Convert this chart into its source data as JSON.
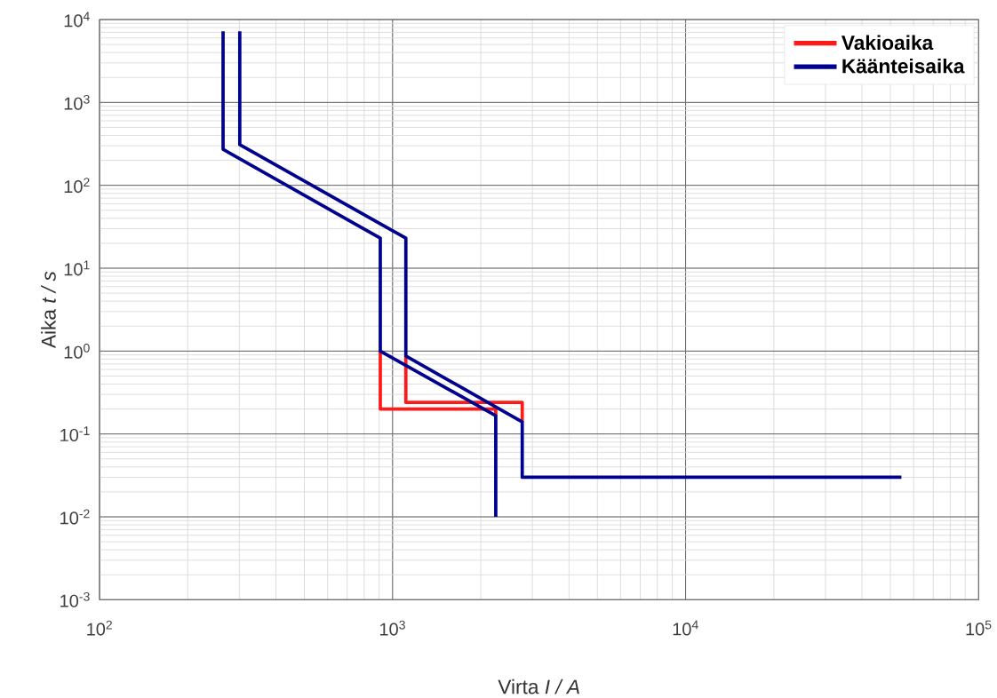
{
  "chart_data": {
    "type": "line",
    "xlabel": "Virta  *I / A*",
    "ylabel": "Aika  *t / s*",
    "log": "xy",
    "grid": true,
    "legend": "top right",
    "line_style": "solid",
    "xlim": [
      100,
      100000
    ],
    "ylim": [
      0.001,
      10000
    ],
    "xticks": [
      {
        "value": 100,
        "label": "10$^{2}$"
      },
      {
        "value": 1000,
        "label": "10$^{3}$"
      },
      {
        "value": 10000,
        "label": "10$^{4}$"
      },
      {
        "value": 100000,
        "label": "10$^{5}$"
      }
    ],
    "yticks": [
      {
        "value": 0.001,
        "label": "10$^{-3}$"
      },
      {
        "value": 0.01,
        "label": "10$^{-2}$"
      },
      {
        "value": 0.1,
        "label": "10$^{-1}$"
      },
      {
        "value": 1,
        "label": "10$^{0}$"
      },
      {
        "value": 10,
        "label": "10$^{1}$"
      },
      {
        "value": 100,
        "label": "10$^{2}$"
      },
      {
        "value": 1000,
        "label": "10$^{3}$"
      },
      {
        "value": 10000,
        "label": "10$^{4}$"
      }
    ],
    "series": [
      {
        "name": "Vakioaika",
        "color": "#ff1a1a",
        "x": [
          908,
          908,
          2250,
          2250,
          null,
          1110,
          1110,
          2770,
          2770
        ],
        "values": [
          1,
          0.2,
          0.2,
          0.166,
          null,
          0.87,
          0.24,
          0.24,
          0.14
        ]
      },
      {
        "name": "Käänteisaika",
        "color": "#00008f",
        "x": [
          264,
          264,
          908,
          908,
          2250,
          2250,
          null,
          301,
          301,
          1110,
          1110,
          2770,
          2770,
          54500
        ],
        "values": [
          7200,
          272,
          23,
          1,
          0.166,
          0.01,
          null,
          7200,
          309,
          23,
          0.87,
          0.14,
          0.03,
          0.03
        ]
      }
    ]
  }
}
